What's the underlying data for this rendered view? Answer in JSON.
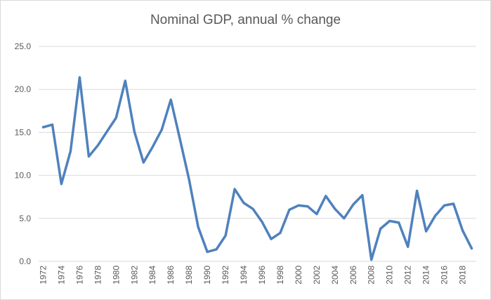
{
  "chart_data": {
    "type": "line",
    "title": "Nominal GDP, annual % change",
    "xlabel": "",
    "ylabel": "",
    "ylim": [
      0,
      25
    ],
    "yticks": [
      "0.0",
      "5.0",
      "10.0",
      "15.0",
      "20.0",
      "25.0"
    ],
    "ytick_values": [
      0,
      5,
      10,
      15,
      20,
      25
    ],
    "grid": true,
    "legend": "none",
    "x": [
      1972,
      1973,
      1974,
      1975,
      1976,
      1977,
      1978,
      1979,
      1980,
      1981,
      1982,
      1983,
      1984,
      1985,
      1986,
      1987,
      1988,
      1989,
      1990,
      1991,
      1992,
      1993,
      1994,
      1995,
      1996,
      1997,
      1998,
      1999,
      2000,
      2001,
      2002,
      2003,
      2004,
      2005,
      2006,
      2007,
      2008,
      2009,
      2010,
      2011,
      2012,
      2013,
      2014,
      2015,
      2016,
      2017,
      2018,
      2019
    ],
    "xtick_labels": [
      "1972",
      "1974",
      "1976",
      "1978",
      "1980",
      "1982",
      "1984",
      "1986",
      "1988",
      "1990",
      "1992",
      "1994",
      "1996",
      "1998",
      "2000",
      "2002",
      "2004",
      "2006",
      "2008",
      "2010",
      "2012",
      "2014",
      "2016",
      "2018"
    ],
    "series": [
      {
        "name": "Nominal GDP, annual % change",
        "color": "#4f81bd",
        "values": [
          15.6,
          15.9,
          9.0,
          12.8,
          21.4,
          12.2,
          13.5,
          15.1,
          16.7,
          21.0,
          15.1,
          11.5,
          13.3,
          15.3,
          18.8,
          14.2,
          9.5,
          4.0,
          1.1,
          1.4,
          3.0,
          8.4,
          6.8,
          6.1,
          4.6,
          2.6,
          3.3,
          6.0,
          6.5,
          6.4,
          5.5,
          7.6,
          6.1,
          5.0,
          6.6,
          7.7,
          0.2,
          3.8,
          4.7,
          4.5,
          1.7,
          8.2,
          3.5,
          5.3,
          6.5,
          6.7,
          3.6,
          1.5
        ]
      }
    ]
  }
}
